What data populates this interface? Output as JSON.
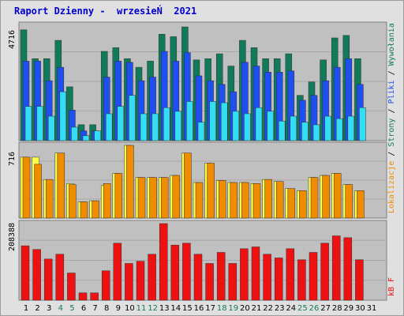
{
  "title": "Raport Dzienny -  wrzesieŃ  2021",
  "colors": {
    "panel_bg": "#c0c0c0",
    "visits": "#117a5a",
    "pages": "#1f4ff0",
    "files": "#33ddf4",
    "locations": "#f08c00",
    "locations_light": "#ffff44",
    "kb": "#ee1111",
    "weekend_day": "#117a5a",
    "weekday_day": "#000000"
  },
  "legend": {
    "locations": "Lokalizacje",
    "sep1": " / ",
    "visits": "Wizyty",
    "sep2": " / ",
    "pages": "Strony",
    "sep3": " / ",
    "files": "Pliki",
    "sep4": " / ",
    "hits": "Wywołania",
    "kb": "kB F"
  },
  "chart_data": [
    {
      "type": "bar",
      "panel": "top",
      "ymax_label": "4716",
      "ylim": [
        0,
        4716
      ],
      "categories": [
        "1",
        "2",
        "3",
        "4",
        "5",
        "6",
        "7",
        "8",
        "9",
        "10",
        "11",
        "12",
        "13",
        "14",
        "15",
        "16",
        "17",
        "18",
        "19",
        "20",
        "21",
        "22",
        "23",
        "24",
        "25",
        "26",
        "27",
        "28",
        "29",
        "30",
        "31"
      ],
      "weekend_days": [
        4,
        5,
        11,
        12,
        18,
        19,
        25,
        26
      ],
      "series": [
        {
          "name": "Wywołania",
          "values": [
            4530,
            3350,
            3350,
            4100,
            2200,
            650,
            650,
            3650,
            3800,
            3350,
            3000,
            3250,
            4350,
            4250,
            4650,
            3300,
            3350,
            3550,
            3050,
            4100,
            3800,
            3350,
            3350,
            3550,
            1850,
            2400,
            3300,
            4200,
            4300,
            3350,
            0
          ]
        },
        {
          "name": "Pliki",
          "values": [
            3250,
            3250,
            2450,
            3000,
            1250,
            400,
            400,
            2600,
            3250,
            3200,
            2450,
            2600,
            3650,
            3250,
            3600,
            2650,
            2450,
            2300,
            2000,
            3200,
            3050,
            2800,
            2800,
            2850,
            1650,
            1850,
            2450,
            3000,
            3350,
            2300,
            0
          ]
        },
        {
          "name": "Strony",
          "values": [
            1400,
            1400,
            1000,
            2000,
            550,
            200,
            400,
            1100,
            1400,
            1850,
            1100,
            1100,
            1350,
            1200,
            1600,
            750,
            1600,
            1550,
            1200,
            1100,
            1350,
            1200,
            800,
            1000,
            750,
            650,
            1000,
            900,
            1000,
            1350,
            0
          ]
        },
        {
          "name": "Wizyty",
          "values": [
            0,
            0,
            0,
            0,
            0,
            0,
            0,
            0,
            0,
            0,
            0,
            0,
            0,
            0,
            0,
            0,
            0,
            0,
            0,
            0,
            0,
            0,
            0,
            0,
            0,
            0,
            0,
            0,
            0,
            0,
            0
          ]
        }
      ]
    },
    {
      "type": "bar",
      "panel": "middle",
      "ymax_label": "716",
      "ylim": [
        0,
        716
      ],
      "categories": [
        "1",
        "2",
        "3",
        "4",
        "5",
        "6",
        "7",
        "8",
        "9",
        "10",
        "11",
        "12",
        "13",
        "14",
        "15",
        "16",
        "17",
        "18",
        "19",
        "20",
        "21",
        "22",
        "23",
        "24",
        "25",
        "26",
        "27",
        "28",
        "29",
        "30",
        "31"
      ],
      "series": [
        {
          "name": "Lokalizacje",
          "values": [
            600,
            530,
            380,
            640,
            330,
            160,
            170,
            340,
            440,
            716,
            400,
            400,
            400,
            420,
            640,
            350,
            540,
            370,
            350,
            350,
            340,
            380,
            360,
            290,
            270,
            400,
            420,
            440,
            330,
            270,
            0
          ]
        },
        {
          "name": "Lokalizacje (max)",
          "values": [
            600,
            600,
            380,
            640,
            340,
            160,
            170,
            320,
            440,
            716,
            400,
            400,
            400,
            420,
            640,
            350,
            540,
            370,
            350,
            350,
            340,
            380,
            360,
            290,
            270,
            400,
            420,
            440,
            330,
            270,
            0
          ]
        }
      ]
    },
    {
      "type": "bar",
      "panel": "bottom",
      "ymax_label": "208388",
      "ylim": [
        0,
        208388
      ],
      "categories": [
        "1",
        "2",
        "3",
        "4",
        "5",
        "6",
        "7",
        "8",
        "9",
        "10",
        "11",
        "12",
        "13",
        "14",
        "15",
        "16",
        "17",
        "18",
        "19",
        "20",
        "21",
        "22",
        "23",
        "24",
        "25",
        "26",
        "27",
        "28",
        "29",
        "30",
        "31"
      ],
      "series": [
        {
          "name": "kB F",
          "values": [
            148000,
            138000,
            112000,
            125000,
            74000,
            20000,
            20000,
            80000,
            155000,
            100000,
            106000,
            125000,
            208388,
            150000,
            155000,
            125000,
            100000,
            130000,
            100000,
            140000,
            145000,
            125000,
            115000,
            140000,
            110000,
            130000,
            155000,
            175000,
            170000,
            110000,
            0
          ]
        }
      ]
    }
  ],
  "xaxis": {
    "labels": [
      "1",
      "2",
      "3",
      "4",
      "5",
      "6",
      "7",
      "8",
      "9",
      "10",
      "11",
      "12",
      "13",
      "14",
      "15",
      "16",
      "17",
      "18",
      "19",
      "20",
      "21",
      "22",
      "23",
      "24",
      "25",
      "26",
      "27",
      "28",
      "29",
      "30",
      "31"
    ]
  }
}
